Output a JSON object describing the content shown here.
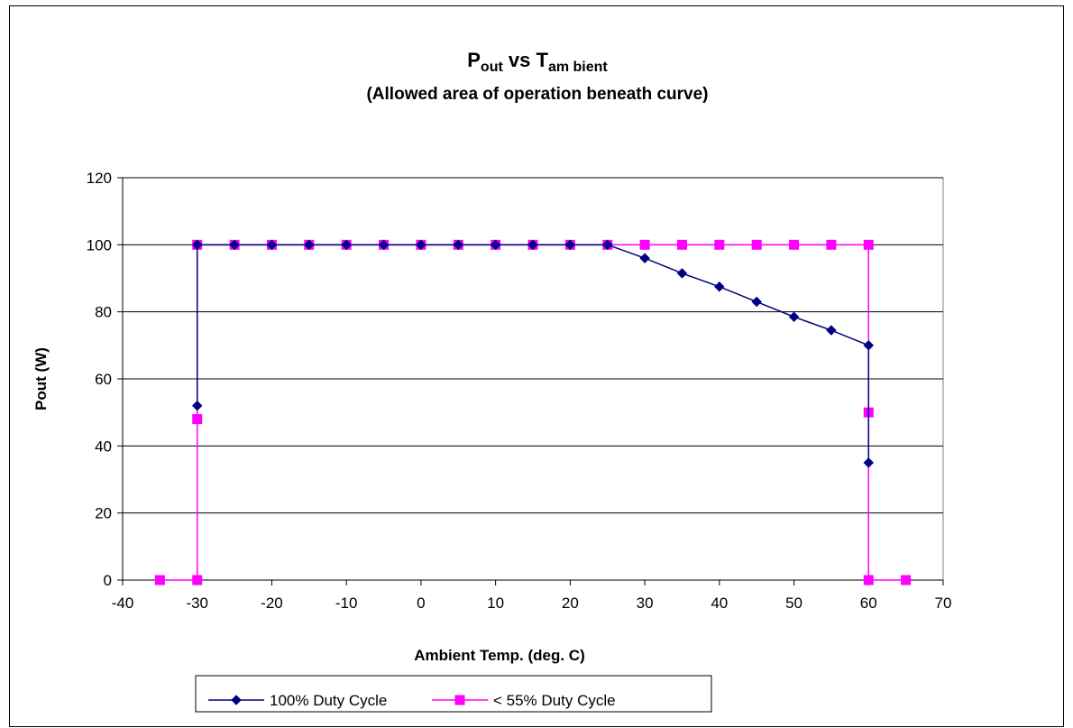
{
  "chart_data": {
    "type": "line",
    "title": {
      "main_p": "P",
      "main_p_sub": "out",
      "main_vs": " vs ",
      "main_t": "T",
      "main_t_sub": "am bient",
      "subtitle": "(Allowed area of operation beneath curve)"
    },
    "xlabel": "Ambient Temp. (deg. C)",
    "ylabel": "Pout (W)",
    "xlim": [
      -40,
      70
    ],
    "ylim": [
      0,
      120
    ],
    "xticks": [
      "-40",
      "-30",
      "-20",
      "-10",
      "0",
      "10",
      "20",
      "30",
      "40",
      "50",
      "60",
      "70"
    ],
    "yticks": [
      "0",
      "20",
      "40",
      "60",
      "80",
      "100",
      "120"
    ],
    "grid": "horizontal",
    "legend_position": "bottom",
    "series": [
      {
        "name": "100% Duty Cycle",
        "color": "#000080",
        "marker": "diamond",
        "points": [
          [
            -30,
            52
          ],
          [
            -30,
            100
          ],
          [
            -25,
            100
          ],
          [
            -20,
            100
          ],
          [
            -15,
            100
          ],
          [
            -10,
            100
          ],
          [
            -5,
            100
          ],
          [
            0,
            100
          ],
          [
            5,
            100
          ],
          [
            10,
            100
          ],
          [
            15,
            100
          ],
          [
            20,
            100
          ],
          [
            25,
            100
          ],
          [
            30,
            96
          ],
          [
            35,
            91.5
          ],
          [
            40,
            87.5
          ],
          [
            45,
            83
          ],
          [
            50,
            78.5
          ],
          [
            55,
            74.5
          ],
          [
            60,
            70
          ],
          [
            60,
            35
          ]
        ]
      },
      {
        "name": "< 55% Duty Cycle",
        "color": "#ff00ff",
        "marker": "square",
        "points": [
          [
            -35,
            0
          ],
          [
            -30,
            0
          ],
          [
            -30,
            48
          ],
          [
            -30,
            100
          ],
          [
            -25,
            100
          ],
          [
            -20,
            100
          ],
          [
            -15,
            100
          ],
          [
            -10,
            100
          ],
          [
            -5,
            100
          ],
          [
            0,
            100
          ],
          [
            5,
            100
          ],
          [
            10,
            100
          ],
          [
            15,
            100
          ],
          [
            20,
            100
          ],
          [
            25,
            100
          ],
          [
            30,
            100
          ],
          [
            35,
            100
          ],
          [
            40,
            100
          ],
          [
            45,
            100
          ],
          [
            50,
            100
          ],
          [
            55,
            100
          ],
          [
            60,
            100
          ],
          [
            60,
            50
          ],
          [
            60,
            0
          ],
          [
            65,
            0
          ]
        ]
      }
    ]
  }
}
